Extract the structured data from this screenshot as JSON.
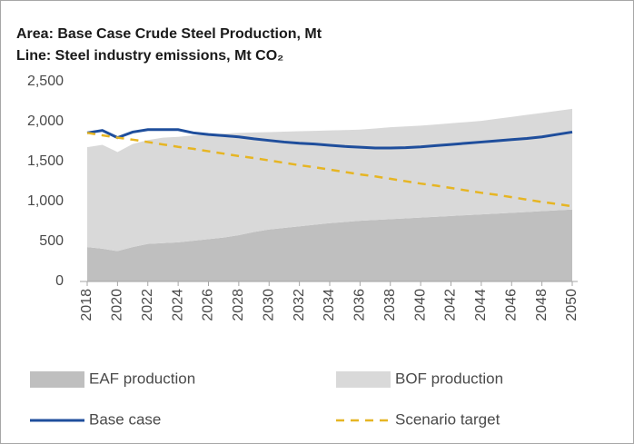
{
  "chart_data": {
    "type": "combo",
    "title": "Area: Base Case Crude Steel Production, Mt",
    "subtitle": "Line: Steel industry emissions, Mt CO₂",
    "x": [
      2018,
      2019,
      2020,
      2021,
      2022,
      2023,
      2024,
      2025,
      2026,
      2027,
      2028,
      2029,
      2030,
      2031,
      2032,
      2033,
      2034,
      2035,
      2036,
      2037,
      2038,
      2039,
      2040,
      2041,
      2042,
      2043,
      2044,
      2045,
      2046,
      2047,
      2048,
      2049,
      2050
    ],
    "xlim": [
      2018,
      2050
    ],
    "xticks": [
      2018,
      2020,
      2022,
      2024,
      2026,
      2028,
      2030,
      2032,
      2034,
      2036,
      2038,
      2040,
      2042,
      2044,
      2046,
      2048,
      2050
    ],
    "ylim": [
      0,
      2500
    ],
    "yticks": [
      0,
      500,
      {
        "value": 1000,
        "label": "1,000"
      },
      {
        "value": 1500,
        "label": "1,500"
      },
      {
        "value": 2000,
        "label": "2,000"
      },
      {
        "value": 2500,
        "label": "2,500"
      }
    ],
    "series": [
      {
        "name": "EAF production",
        "type": "area",
        "color": "#bfbfbf",
        "values": [
          430,
          410,
          380,
          430,
          470,
          480,
          490,
          510,
          530,
          550,
          580,
          620,
          650,
          670,
          690,
          710,
          730,
          745,
          760,
          770,
          780,
          790,
          800,
          810,
          820,
          830,
          840,
          850,
          860,
          870,
          880,
          890,
          900
        ]
      },
      {
        "name": "BOF production",
        "type": "area",
        "color": "#d9d9d9",
        "values": [
          1250,
          1300,
          1240,
          1290,
          1300,
          1320,
          1320,
          1320,
          1310,
          1300,
          1280,
          1245,
          1220,
          1205,
          1190,
          1175,
          1160,
          1150,
          1140,
          1145,
          1150,
          1150,
          1150,
          1155,
          1160,
          1165,
          1170,
          1185,
          1200,
          1215,
          1230,
          1245,
          1260
        ]
      },
      {
        "name": "Base case",
        "type": "line",
        "color": "#1f4e9c",
        "values": [
          1860,
          1890,
          1800,
          1870,
          1900,
          1900,
          1900,
          1860,
          1840,
          1825,
          1810,
          1785,
          1765,
          1745,
          1730,
          1720,
          1705,
          1690,
          1680,
          1670,
          1670,
          1675,
          1685,
          1700,
          1715,
          1730,
          1745,
          1760,
          1775,
          1790,
          1810,
          1840,
          1870
        ]
      },
      {
        "name": "Scenario target",
        "type": "line",
        "dashed": true,
        "color": "#e6b523",
        "values": [
          1860,
          1830,
          1800,
          1775,
          1745,
          1715,
          1685,
          1660,
          1630,
          1600,
          1570,
          1545,
          1515,
          1485,
          1455,
          1430,
          1400,
          1370,
          1340,
          1315,
          1285,
          1255,
          1225,
          1200,
          1170,
          1140,
          1110,
          1085,
          1055,
          1025,
          995,
          970,
          940
        ]
      }
    ]
  }
}
